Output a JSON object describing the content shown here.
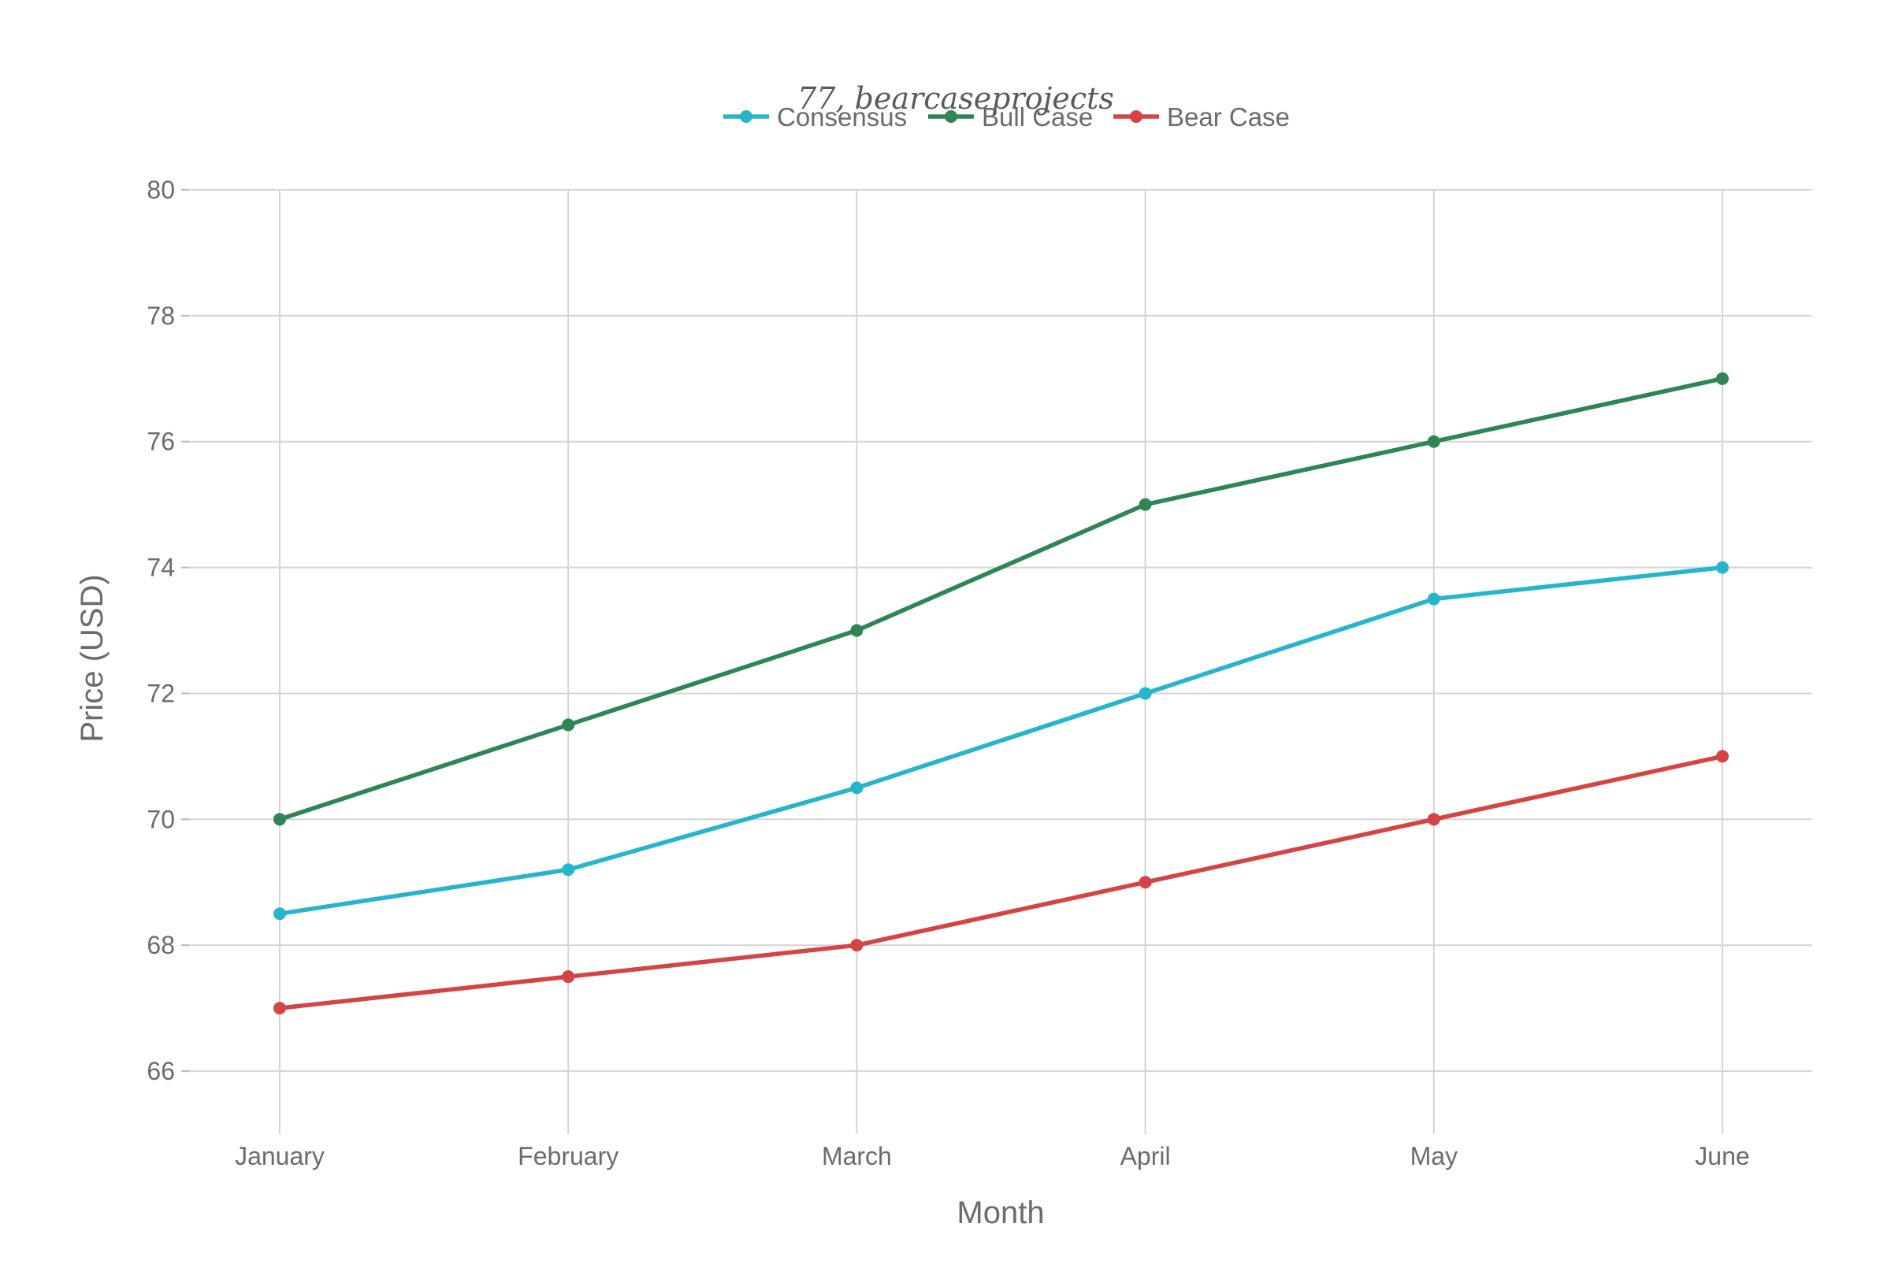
{
  "chart_data": {
    "type": "line",
    "title": "77, bearcaseprojects",
    "xlabel": "Month",
    "ylabel": "Price (USD)",
    "categories": [
      "January",
      "February",
      "March",
      "April",
      "May",
      "June"
    ],
    "ylim": [
      65,
      80
    ],
    "yticks": [
      66,
      68,
      70,
      72,
      74,
      76,
      78,
      80
    ],
    "grid": true,
    "legend_position": "top-center",
    "series": [
      {
        "name": "Consensus",
        "color": "#26b5cb",
        "values": [
          68.5,
          69.2,
          70.5,
          72,
          73.5,
          74
        ]
      },
      {
        "name": "Bull Case",
        "color": "#2e8555",
        "values": [
          70,
          71.5,
          73,
          75,
          76,
          77
        ]
      },
      {
        "name": "Bear Case",
        "color": "#d54444",
        "values": [
          67,
          67.5,
          68,
          69,
          70,
          71
        ]
      }
    ]
  }
}
